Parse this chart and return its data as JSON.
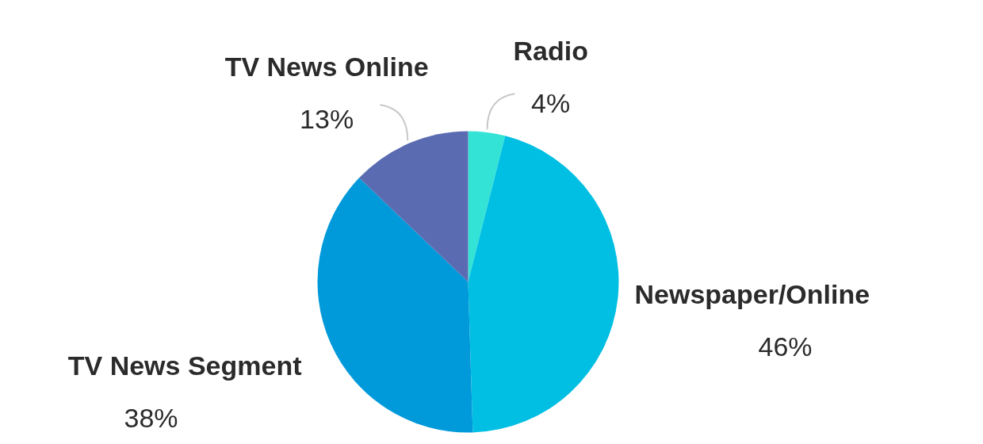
{
  "chart_data": {
    "type": "pie",
    "categories": [
      "Radio",
      "Newspaper/Online",
      "TV News Segment",
      "TV News Online"
    ],
    "values": [
      4,
      46,
      38,
      13
    ],
    "value_labels": [
      "4%",
      "46%",
      "38%",
      "13%"
    ],
    "colors": [
      "#33e3d5",
      "#00bfe3",
      "#0099da",
      "#5a6bb1"
    ]
  }
}
